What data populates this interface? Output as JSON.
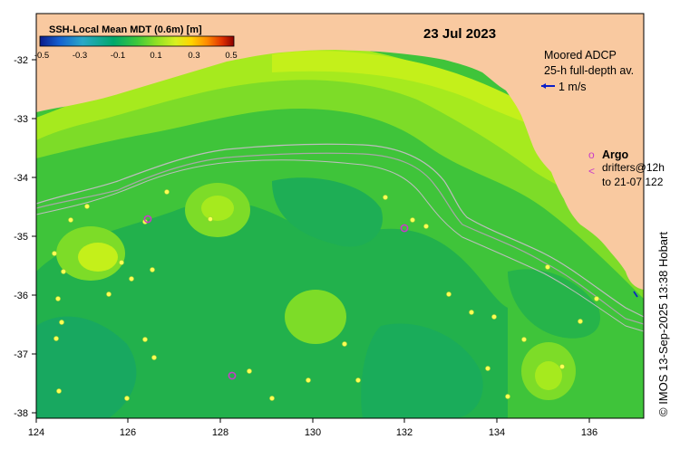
{
  "map": {
    "date": "23 Jul 2023",
    "colorbar": {
      "title": "SSH-Local Mean MDT (0.6m) [m]",
      "ticks": [
        "-0.5",
        "-0.3",
        "-0.1",
        "0.1",
        "0.3",
        "0.5"
      ],
      "colors": [
        "#0b1a8a",
        "#1560d0",
        "#2aa8c8",
        "#00a86b",
        "#3cc83c",
        "#8fe024",
        "#d8f020",
        "#ffd400",
        "#ff8c00",
        "#e03000",
        "#8b0000"
      ]
    },
    "lon_ticks": [
      "124",
      "126",
      "128",
      "130",
      "132",
      "134",
      "136"
    ],
    "lat_ticks": [
      "-32",
      "-33",
      "-34",
      "-35",
      "-36",
      "-37",
      "-38"
    ],
    "adcp_legend": {
      "line1": "Moored ADCP",
      "line2": "25-h full-depth av.",
      "scale": "1 m/s"
    },
    "argo_legend": {
      "marker": "o",
      "label": "Argo",
      "drifter_marker": "<",
      "drifter_line1": "drifters@12h",
      "drifter_line2": "to 21-07 122"
    },
    "credit": "© IMOS 13-Sep-2025 13:38 Hobart",
    "colors": {
      "land": "#f9c9a0",
      "argo": "#c83cc8",
      "adcp": "#0a1ec8",
      "bathy_contour": "#b4b4b4"
    }
  }
}
